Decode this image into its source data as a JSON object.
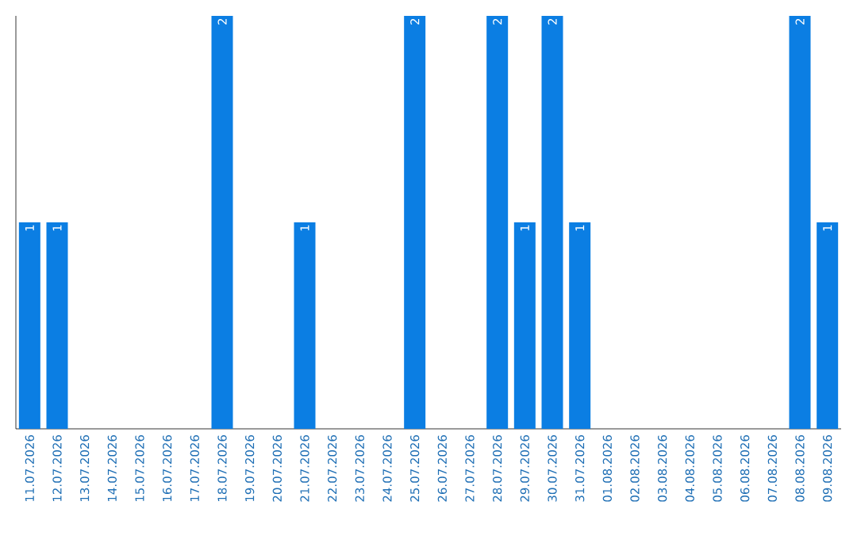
{
  "chart_data": {
    "type": "bar",
    "categories": [
      "11.07.2026",
      "12.07.2026",
      "13.07.2026",
      "14.07.2026",
      "15.07.2026",
      "16.07.2026",
      "17.07.2026",
      "18.07.2026",
      "19.07.2026",
      "20.07.2026",
      "21.07.2026",
      "22.07.2026",
      "23.07.2026",
      "24.07.2026",
      "25.07.2026",
      "26.07.2026",
      "27.07.2026",
      "28.07.2026",
      "29.07.2026",
      "30.07.2026",
      "31.07.2026",
      "01.08.2026",
      "02.08.2026",
      "03.08.2026",
      "04.08.2026",
      "05.08.2026",
      "06.08.2026",
      "07.08.2026",
      "08.08.2026",
      "09.08.2026"
    ],
    "values": [
      1,
      1,
      0,
      0,
      0,
      0,
      0,
      2,
      0,
      0,
      1,
      0,
      0,
      0,
      2,
      0,
      0,
      2,
      1,
      2,
      1,
      0,
      0,
      0,
      0,
      0,
      0,
      0,
      2,
      1
    ],
    "value_labels": [
      "1",
      "1",
      null,
      null,
      null,
      null,
      null,
      "2",
      null,
      null,
      "1",
      null,
      null,
      null,
      "2",
      null,
      null,
      "2",
      "1",
      "2",
      "1",
      null,
      null,
      null,
      null,
      null,
      null,
      null,
      "2",
      "1"
    ],
    "color": "#0b7ee3",
    "tick_labels": "x"
  }
}
